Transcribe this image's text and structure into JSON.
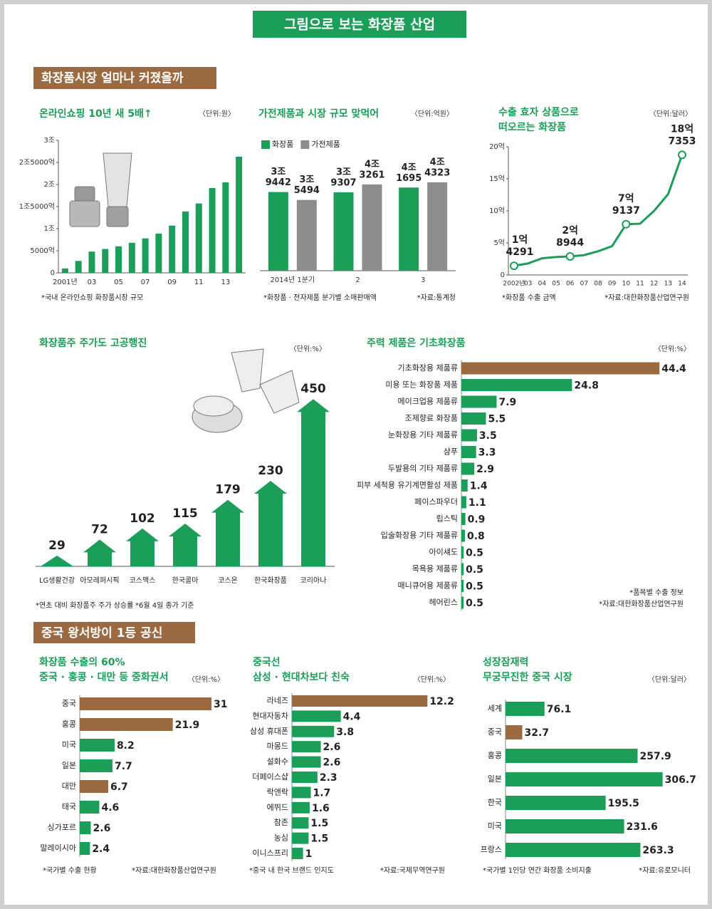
{
  "title": "그림으로 보는 화장품 산업",
  "section_titles": [
    "화장품시장 얼마나 커졌을까",
    "중국 왕서방이 1등 공신"
  ],
  "chart_data": [
    {
      "type": "bar",
      "title": [
        "온라인쇼핑 10년 새 5배↑"
      ],
      "unit": "〈단위:원〉",
      "categories": [
        "2001년",
        null,
        "03",
        null,
        "05",
        null,
        "07",
        null,
        "09",
        null,
        "11",
        null,
        "13",
        null
      ],
      "values": [
        1000,
        2700,
        4800,
        5400,
        6000,
        6800,
        7800,
        8900,
        10700,
        13900,
        15700,
        19200,
        20500,
        26300
      ],
      "color": "#1a9e58",
      "ylim": [
        0,
        30000
      ],
      "yticks": [
        0,
        {
          "value": 5000,
          "label": "5000억"
        },
        {
          "value": 10000,
          "label": "1조"
        },
        {
          "value": 15000,
          "label": "1조5000억"
        },
        {
          "value": 20000,
          "label": "2조"
        },
        {
          "value": 25000,
          "label": "2조5000억"
        },
        {
          "value": 30000,
          "label": "3조"
        }
      ],
      "notes": [
        "*국내 온라인쇼핑 화장품시장 규모"
      ]
    },
    {
      "type": "grouped_bar",
      "title": [
        "가전제품과 시장 규모 맞먹어"
      ],
      "unit": "〈단위:억원〉",
      "categories": [
        "2014년 1분기",
        "2",
        "3"
      ],
      "ylim": [
        0,
        50000
      ],
      "series": [
        {
          "name": "화장품",
          "color": "#1a9e58",
          "values": [
            39442,
            39307,
            41695
          ],
          "value_labels": [
            [
              "3조",
              "9442"
            ],
            [
              "3조",
              "9307"
            ],
            [
              "4조",
              "1695"
            ]
          ]
        },
        {
          "name": "가전제품",
          "color": "#8d8d8f",
          "values": [
            35494,
            43261,
            44323
          ],
          "value_labels": [
            [
              "3조",
              "5494"
            ],
            [
              "4조",
              "3261"
            ],
            [
              "4조",
              "4323"
            ]
          ]
        }
      ],
      "notes": [
        "*화장품 · 전자제품 분기별 소매판매액",
        "*자료:통계청"
      ]
    },
    {
      "type": "line",
      "title": [
        "수출 효자 상품으로",
        "떠오르는 화장품"
      ],
      "unit": "〈단위:달러〉",
      "categories": [
        "2002년",
        "03",
        "04",
        "05",
        "06",
        "07",
        "08",
        "09",
        "10",
        "11",
        "12",
        "13",
        "14"
      ],
      "values": [
        1.4291,
        1.8,
        2.6,
        2.8,
        2.8944,
        3.1,
        3.7,
        4.5,
        7.9137,
        8.0,
        10.0,
        12.6,
        18.7353
      ],
      "value_labels": [
        [
          "1억",
          "4291"
        ],
        null,
        null,
        null,
        [
          "2억",
          "8944"
        ],
        null,
        null,
        null,
        [
          "7억",
          "9137"
        ],
        null,
        null,
        null,
        [
          "18억",
          "7353"
        ]
      ],
      "color": "#1a9e58",
      "ylim": [
        0,
        20
      ],
      "yticks": [
        0,
        {
          "value": 5,
          "label": "5억"
        },
        {
          "value": 10,
          "label": "10억"
        },
        {
          "value": 15,
          "label": "15억"
        },
        {
          "value": 20,
          "label": "20억"
        }
      ],
      "notes": [
        "*화장품 수출 금액",
        "*자료:대한화장품산업연구원"
      ]
    },
    {
      "type": "arrow_bar",
      "title": [
        "화장품주 주가도 고공행진"
      ],
      "unit": "〈단위:%〉",
      "categories": [
        "LG생활건강",
        "아모레퍼시픽",
        "코스맥스",
        "한국콜마",
        "코스온",
        "한국화장품",
        "코리아나"
      ],
      "values": [
        29,
        72,
        102,
        115,
        179,
        230,
        450
      ],
      "color": "#1a9e58",
      "ylim": [
        0,
        460
      ],
      "notes": [
        "*연초 대비 화장품주 주가 상승률",
        "*6월 4일 종가 기준"
      ]
    },
    {
      "type": "hbar",
      "title": [
        "주력 제품은 기초화장품"
      ],
      "unit": "〈단위:%〉",
      "categories": [
        "기초화장용 제품류",
        "미용 또는 화장품 제품",
        "메이크업용 제품류",
        "조제향료 화장품",
        "눈화장용 기타 제품류",
        "샴푸",
        "두발용의 기타 제품류",
        "피부 세척용 유기계면활성 제품",
        "페이스파우더",
        "립스틱",
        "입술화장용 기타 제품류",
        "아이섀도",
        "목욕용 제품류",
        "매니큐어용 제품류",
        "헤어린스"
      ],
      "values": [
        44.4,
        24.8,
        7.9,
        5.5,
        3.5,
        3.3,
        2.9,
        1.4,
        1.1,
        0.9,
        0.8,
        0.5,
        0.5,
        0.5,
        0.5
      ],
      "colors": [
        "#9b6a40",
        "#1a9e58",
        "#1a9e58",
        "#1a9e58",
        "#1a9e58",
        "#1a9e58",
        "#1a9e58",
        "#1a9e58",
        "#1a9e58",
        "#1a9e58",
        "#1a9e58",
        "#1a9e58",
        "#1a9e58",
        "#1a9e58",
        "#1a9e58"
      ],
      "xlim": [
        0,
        45
      ],
      "notes": [
        "*품목별 수출 정보",
        "*자료:대한화장품산업연구원"
      ]
    },
    {
      "type": "hbar",
      "title": [
        "화장품 수출의 60%",
        "중국 · 홍콩 · 대만 등 중화권서"
      ],
      "unit": "〈단위:%〉",
      "categories": [
        "중국",
        "홍콩",
        "미국",
        "일본",
        "대만",
        "태국",
        "싱가포르",
        "말레이시아"
      ],
      "values": [
        31,
        21.9,
        8.2,
        7.7,
        6.7,
        4.6,
        2.6,
        2.4
      ],
      "colors": [
        "#9b6a40",
        "#9b6a40",
        "#1a9e58",
        "#1a9e58",
        "#9b6a40",
        "#1a9e58",
        "#1a9e58",
        "#1a9e58"
      ],
      "xlim": [
        0,
        31.5
      ],
      "notes": [
        "*국가별 수출 현황",
        "*자료:대한화장품산업연구원"
      ]
    },
    {
      "type": "hbar",
      "title": [
        "중국선",
        "삼성 · 현대차보다 친숙"
      ],
      "unit": "〈단위:%〉",
      "categories": [
        "라네즈",
        "현대자동차",
        "삼성 휴대폰",
        "마몽드",
        "설화수",
        "더페이스샵",
        "락앤락",
        "에뛰드",
        "참존",
        "농심",
        "이니스프리"
      ],
      "values": [
        12.2,
        4.4,
        3.8,
        2.6,
        2.6,
        2.3,
        1.7,
        1.6,
        1.5,
        1.5,
        1
      ],
      "colors": [
        "#9b6a40",
        "#1a9e58",
        "#1a9e58",
        "#1a9e58",
        "#1a9e58",
        "#1a9e58",
        "#1a9e58",
        "#1a9e58",
        "#1a9e58",
        "#1a9e58",
        "#1a9e58"
      ],
      "xlim": [
        0,
        12.5
      ],
      "notes": [
        "*중국 내 한국 브랜드 인지도",
        "*자료:국제무역연구원"
      ]
    },
    {
      "type": "hbar",
      "title": [
        "성장잠재력",
        "무궁무진한 중국 시장"
      ],
      "unit": "〈단위:달러〉",
      "categories": [
        "세계",
        "중국",
        "홍콩",
        "일본",
        "한국",
        "미국",
        "프랑스"
      ],
      "values": [
        76.1,
        32.7,
        257.9,
        306.7,
        195.5,
        231.6,
        263.3
      ],
      "colors": [
        "#1a9e58",
        "#9b6a40",
        "#1a9e58",
        "#1a9e58",
        "#1a9e58",
        "#1a9e58",
        "#1a9e58"
      ],
      "xlim": [
        0,
        310
      ],
      "notes": [
        "*국가별 1인당 연간 화장품 소비지출",
        "*자료:유로모니터"
      ]
    }
  ]
}
